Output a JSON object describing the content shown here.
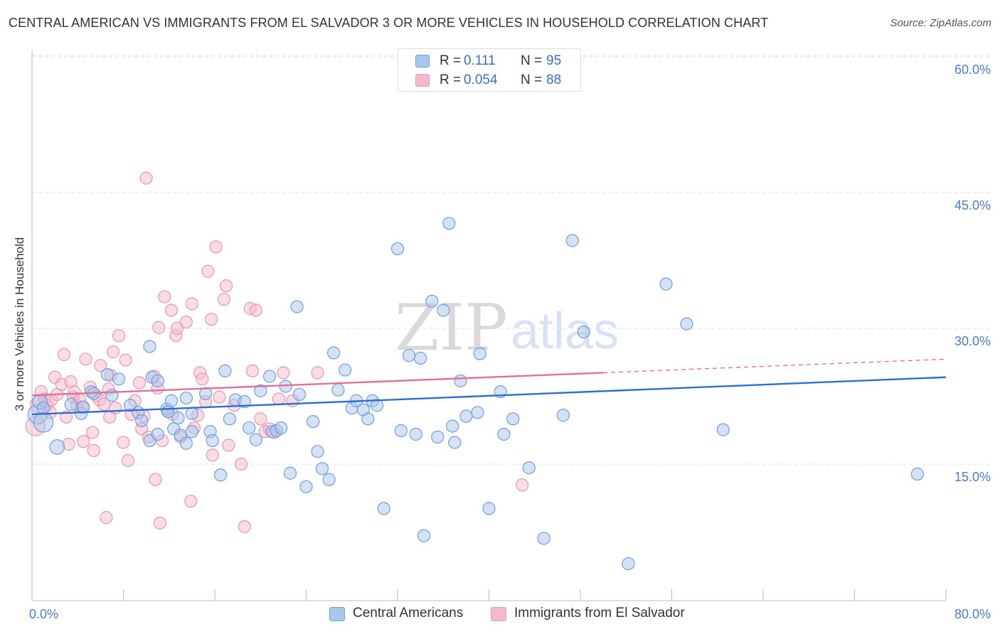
{
  "title": "CENTRAL AMERICAN VS IMMIGRANTS FROM EL SALVADOR 3 OR MORE VEHICLES IN HOUSEHOLD CORRELATION CHART",
  "source": "Source: ZipAtlas.com",
  "watermark": {
    "zip": "ZIP",
    "atlas": "atlas"
  },
  "legend_top": {
    "rows": [
      {
        "r_label": "R =",
        "r_value": "0.111",
        "n_label": "N =",
        "n_value": "95"
      },
      {
        "r_label": "R =",
        "r_value": "0.054",
        "n_label": "N =",
        "n_value": "88"
      }
    ]
  },
  "chart_data": {
    "type": "scatter",
    "ylabel": "3 or more Vehicles in Household",
    "xlabel": "",
    "xlim": [
      0,
      80
    ],
    "ylim": [
      0,
      62
    ],
    "y_ticks": [
      15,
      30,
      45,
      60
    ],
    "y_tick_labels": [
      "15.0%",
      "30.0%",
      "45.0%",
      "60.0%"
    ],
    "x_tick_labels": [
      "0.0%",
      "80.0%"
    ],
    "grid": "horizontal dashed",
    "legend": "bottom-center",
    "colors": {
      "blue_fill": "#a9c6ec",
      "blue_stroke": "#6f9fdc",
      "blue_line": "#2e6fce",
      "pink_fill": "#f5b9cc",
      "pink_stroke": "#e897b1",
      "pink_line": "#e0709a",
      "grid": "#dddddd",
      "axis": "#bbbbbb",
      "tick": "#4a7cc7"
    },
    "series": [
      {
        "name": "Central Americans",
        "trend": {
          "x0": 0,
          "y0": 20.5,
          "x1": 80,
          "y1": 24.6
        },
        "points": [
          [
            0.5,
            20.5,
            1.6
          ],
          [
            0.7,
            21.9,
            1.2
          ],
          [
            1.0,
            21.2,
            1.0
          ],
          [
            1.0,
            19.6,
            1.6
          ],
          [
            2.2,
            16.9,
            1.2
          ],
          [
            3.4,
            21.6,
            1.0
          ],
          [
            4.3,
            20.6,
            1.0
          ],
          [
            4.5,
            21.3,
            1.0
          ],
          [
            5.2,
            23.0,
            1.0
          ],
          [
            5.4,
            22.8,
            1.0
          ],
          [
            6.6,
            24.9,
            1.0
          ],
          [
            7.0,
            22.6,
            1.0
          ],
          [
            7.6,
            24.4,
            1.0
          ],
          [
            8.6,
            21.5,
            1.0
          ],
          [
            9.3,
            20.7,
            1.0
          ],
          [
            9.6,
            19.8,
            1.0
          ],
          [
            10.3,
            17.6,
            1.0
          ],
          [
            10.5,
            24.6,
            1.0
          ],
          [
            10.3,
            28.0,
            1.0
          ],
          [
            11.0,
            18.3,
            1.0
          ],
          [
            11.0,
            24.2,
            1.0
          ],
          [
            11.8,
            21.1,
            1.0
          ],
          [
            11.9,
            20.8,
            1.0
          ],
          [
            12.2,
            22.0,
            1.0
          ],
          [
            12.4,
            18.9,
            1.0
          ],
          [
            12.8,
            20.1,
            1.0
          ],
          [
            13.0,
            18.2,
            1.0
          ],
          [
            13.5,
            17.3,
            1.0
          ],
          [
            13.5,
            22.3,
            1.0
          ],
          [
            14.0,
            20.6,
            1.0
          ],
          [
            14.0,
            18.6,
            1.0
          ],
          [
            15.2,
            22.8,
            1.0
          ],
          [
            15.6,
            18.6,
            1.0
          ],
          [
            15.8,
            17.6,
            1.0
          ],
          [
            16.5,
            13.8,
            1.0
          ],
          [
            16.9,
            25.3,
            1.0
          ],
          [
            17.3,
            20.0,
            1.0
          ],
          [
            17.8,
            22.1,
            1.0
          ],
          [
            18.6,
            21.9,
            1.0
          ],
          [
            19.0,
            19.0,
            1.0
          ],
          [
            19.6,
            17.7,
            1.0
          ],
          [
            20.0,
            23.1,
            1.0
          ],
          [
            20.8,
            24.7,
            1.0
          ],
          [
            21.0,
            18.6,
            1.0
          ],
          [
            21.4,
            18.7,
            1.0
          ],
          [
            21.8,
            19.0,
            1.0
          ],
          [
            22.2,
            23.6,
            1.0
          ],
          [
            22.6,
            14.0,
            1.0
          ],
          [
            23.2,
            32.4,
            1.0
          ],
          [
            23.4,
            22.7,
            1.0
          ],
          [
            24.0,
            12.5,
            1.0
          ],
          [
            24.6,
            19.7,
            1.0
          ],
          [
            25.0,
            16.4,
            1.0
          ],
          [
            25.4,
            14.5,
            1.0
          ],
          [
            26.0,
            13.3,
            1.0
          ],
          [
            26.4,
            27.3,
            1.0
          ],
          [
            26.8,
            23.2,
            1.0
          ],
          [
            27.4,
            25.4,
            1.0
          ],
          [
            28.0,
            21.2,
            1.0
          ],
          [
            28.4,
            22.0,
            1.0
          ],
          [
            29.0,
            21.0,
            1.0
          ],
          [
            29.4,
            20.0,
            1.0
          ],
          [
            29.8,
            22.0,
            1.0
          ],
          [
            30.2,
            21.5,
            1.0
          ],
          [
            30.8,
            10.1,
            1.0
          ],
          [
            32.0,
            38.8,
            1.0
          ],
          [
            32.3,
            18.7,
            1.0
          ],
          [
            33.0,
            27.0,
            1.0
          ],
          [
            33.6,
            18.3,
            1.0
          ],
          [
            34.0,
            26.7,
            1.0
          ],
          [
            34.3,
            7.1,
            1.0
          ],
          [
            35.0,
            33.0,
            1.0
          ],
          [
            35.5,
            18.0,
            1.0
          ],
          [
            36.0,
            32.0,
            1.0
          ],
          [
            36.5,
            41.6,
            1.0
          ],
          [
            36.8,
            19.2,
            1.0
          ],
          [
            37.0,
            17.4,
            1.0
          ],
          [
            37.5,
            24.2,
            1.0
          ],
          [
            38.0,
            20.3,
            1.0
          ],
          [
            39.0,
            20.7,
            1.0
          ],
          [
            39.2,
            27.2,
            1.0
          ],
          [
            40.0,
            10.1,
            1.0
          ],
          [
            41.0,
            23.0,
            1.0
          ],
          [
            41.3,
            18.3,
            1.0
          ],
          [
            42.1,
            20.0,
            1.0
          ],
          [
            43.5,
            14.6,
            1.0
          ],
          [
            44.0,
            57.8,
            1.0
          ],
          [
            44.8,
            6.8,
            1.0
          ],
          [
            46.5,
            20.4,
            1.0
          ],
          [
            47.3,
            39.7,
            1.0
          ],
          [
            48.3,
            29.6,
            1.0
          ],
          [
            52.2,
            4.0,
            1.0
          ],
          [
            55.5,
            34.9,
            1.0
          ],
          [
            57.3,
            30.5,
            1.0
          ],
          [
            60.5,
            18.8,
            1.0
          ],
          [
            77.5,
            13.9,
            1.0
          ]
        ]
      },
      {
        "name": "Immigrants from El Salvador",
        "trend": {
          "x0": 0,
          "y0": 22.6,
          "x1": 50,
          "y1": 25.1,
          "dash_to_x": 80,
          "dash_to_y": 26.6
        },
        "points": [
          [
            0.3,
            19.2,
            1.6
          ],
          [
            0.6,
            21.6,
            1.4
          ],
          [
            0.8,
            23.0,
            1.0
          ],
          [
            1.1,
            22.2,
            1.0
          ],
          [
            1.3,
            21.5,
            1.0
          ],
          [
            1.6,
            20.7,
            1.0
          ],
          [
            1.7,
            22.1,
            1.0
          ],
          [
            2.0,
            24.6,
            1.0
          ],
          [
            2.2,
            22.7,
            1.0
          ],
          [
            2.6,
            23.8,
            1.0
          ],
          [
            2.8,
            27.1,
            1.0
          ],
          [
            3.0,
            20.2,
            1.0
          ],
          [
            3.2,
            17.2,
            1.0
          ],
          [
            3.4,
            24.1,
            1.0
          ],
          [
            3.6,
            22.4,
            1.0
          ],
          [
            3.7,
            23.0,
            1.0
          ],
          [
            3.9,
            21.5,
            1.0
          ],
          [
            4.2,
            22.1,
            1.0
          ],
          [
            4.4,
            21.3,
            1.0
          ],
          [
            4.5,
            17.5,
            1.0
          ],
          [
            4.7,
            26.6,
            1.0
          ],
          [
            5.1,
            23.5,
            1.0
          ],
          [
            5.3,
            18.5,
            1.0
          ],
          [
            5.4,
            16.5,
            1.0
          ],
          [
            5.6,
            22.6,
            1.0
          ],
          [
            5.9,
            22.1,
            1.0
          ],
          [
            6.0,
            25.9,
            1.0
          ],
          [
            6.3,
            21.6,
            1.0
          ],
          [
            6.5,
            9.1,
            1.0
          ],
          [
            6.7,
            23.3,
            1.0
          ],
          [
            6.8,
            20.2,
            1.0
          ],
          [
            6.9,
            24.8,
            1.0
          ],
          [
            7.1,
            27.4,
            1.0
          ],
          [
            7.3,
            21.2,
            1.0
          ],
          [
            7.6,
            29.2,
            1.0
          ],
          [
            8.0,
            17.4,
            1.0
          ],
          [
            8.2,
            26.5,
            1.0
          ],
          [
            8.4,
            15.4,
            1.0
          ],
          [
            8.7,
            20.5,
            1.0
          ],
          [
            9.0,
            22.0,
            1.0
          ],
          [
            9.4,
            24.0,
            1.0
          ],
          [
            9.6,
            18.9,
            1.0
          ],
          [
            9.8,
            20.3,
            1.0
          ],
          [
            10.2,
            18.0,
            1.0
          ],
          [
            10.7,
            24.7,
            1.0
          ],
          [
            10.8,
            13.3,
            1.0
          ],
          [
            11.0,
            23.4,
            1.0
          ],
          [
            11.1,
            30.1,
            1.0
          ],
          [
            11.2,
            8.5,
            1.0
          ],
          [
            11.4,
            17.6,
            1.0
          ],
          [
            11.6,
            33.5,
            1.0
          ],
          [
            11.9,
            20.8,
            1.0
          ],
          [
            12.2,
            32.0,
            1.0
          ],
          [
            12.3,
            20.5,
            1.0
          ],
          [
            12.6,
            29.2,
            1.0
          ],
          [
            12.7,
            30.0,
            1.0
          ],
          [
            13.0,
            18.0,
            1.0
          ],
          [
            13.5,
            30.7,
            1.0
          ],
          [
            13.9,
            10.9,
            1.0
          ],
          [
            14.0,
            32.7,
            1.0
          ],
          [
            14.2,
            19.0,
            1.0
          ],
          [
            14.5,
            20.4,
            1.0
          ],
          [
            14.7,
            25.1,
            1.0
          ],
          [
            14.9,
            24.4,
            1.0
          ],
          [
            15.2,
            21.9,
            1.0
          ],
          [
            15.4,
            36.3,
            1.0
          ],
          [
            15.7,
            31.0,
            1.0
          ],
          [
            15.8,
            16.0,
            1.0
          ],
          [
            16.1,
            39.0,
            1.0
          ],
          [
            16.4,
            22.4,
            1.0
          ],
          [
            16.8,
            33.2,
            1.0
          ],
          [
            17.0,
            34.7,
            1.0
          ],
          [
            17.2,
            17.1,
            1.0
          ],
          [
            17.7,
            21.5,
            1.0
          ],
          [
            18.3,
            15.0,
            1.0
          ],
          [
            18.6,
            8.1,
            1.0
          ],
          [
            19.1,
            32.2,
            1.0
          ],
          [
            19.3,
            25.3,
            1.0
          ],
          [
            19.6,
            32.0,
            1.0
          ],
          [
            20.0,
            20.0,
            1.0
          ],
          [
            20.4,
            18.6,
            1.0
          ],
          [
            20.8,
            18.9,
            1.0
          ],
          [
            21.2,
            18.5,
            1.0
          ],
          [
            21.6,
            22.2,
            1.0
          ],
          [
            22.0,
            25.1,
            1.0
          ],
          [
            22.8,
            22.0,
            1.0
          ],
          [
            25.0,
            25.1,
            1.0
          ],
          [
            42.9,
            12.7,
            1.0
          ],
          [
            10.0,
            46.6,
            1.0
          ]
        ]
      }
    ]
  },
  "legend_bottom": {
    "items": [
      "Central Americans",
      "Immigrants from El Salvador"
    ]
  }
}
